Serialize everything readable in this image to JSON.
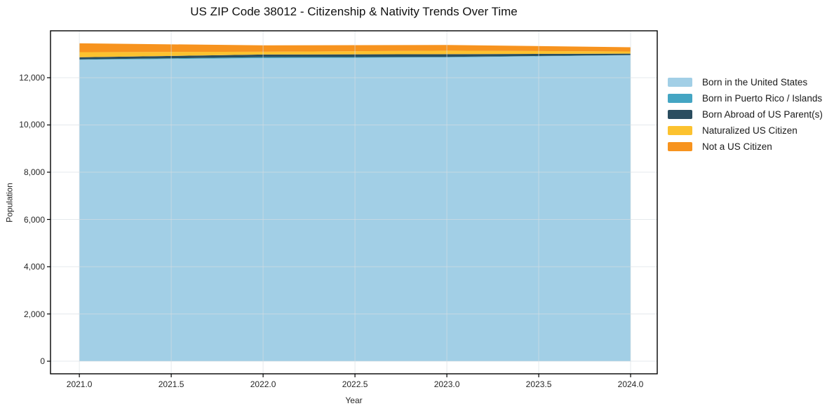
{
  "title": "US ZIP Code 38012 - Citizenship & Nativity Trends Over Time",
  "chart_data": {
    "type": "area",
    "stacked": true,
    "title": "US ZIP Code 38012 - Citizenship & Nativity Trends Over Time",
    "xlabel": "Year",
    "ylabel": "Population",
    "x": [
      2021,
      2022,
      2023,
      2024
    ],
    "series": [
      {
        "name": "Born in the United States",
        "color": "#a2cfe6",
        "values": [
          12760,
          12830,
          12860,
          12950
        ]
      },
      {
        "name": "Born in Puerto Rico / Islands",
        "color": "#44a5c3",
        "values": [
          15,
          40,
          20,
          10
        ]
      },
      {
        "name": "Born Abroad of US Parent(s)",
        "color": "#2a4d5f",
        "values": [
          90,
          110,
          115,
          60
        ]
      },
      {
        "name": "Naturalized US Citizen",
        "color": "#fcc22f",
        "values": [
          215,
          120,
          150,
          90
        ]
      },
      {
        "name": "Not a US Citizen",
        "color": "#f7931e",
        "values": [
          375,
          270,
          240,
          180
        ]
      }
    ],
    "xticks": [
      "2021.0",
      "2021.5",
      "2022.0",
      "2022.5",
      "2023.0",
      "2023.5",
      "2024.0"
    ],
    "yticks": [
      "0",
      "2,000",
      "4,000",
      "6,000",
      "8,000",
      "10,000",
      "12,000"
    ],
    "xlim": [
      2020.843,
      2024.145
    ],
    "ylim": [
      -533,
      13985
    ],
    "grid": true,
    "legend_position": "right",
    "spine_color": "#000000",
    "grid_color": "rgba(215,221,226,0.65)"
  }
}
